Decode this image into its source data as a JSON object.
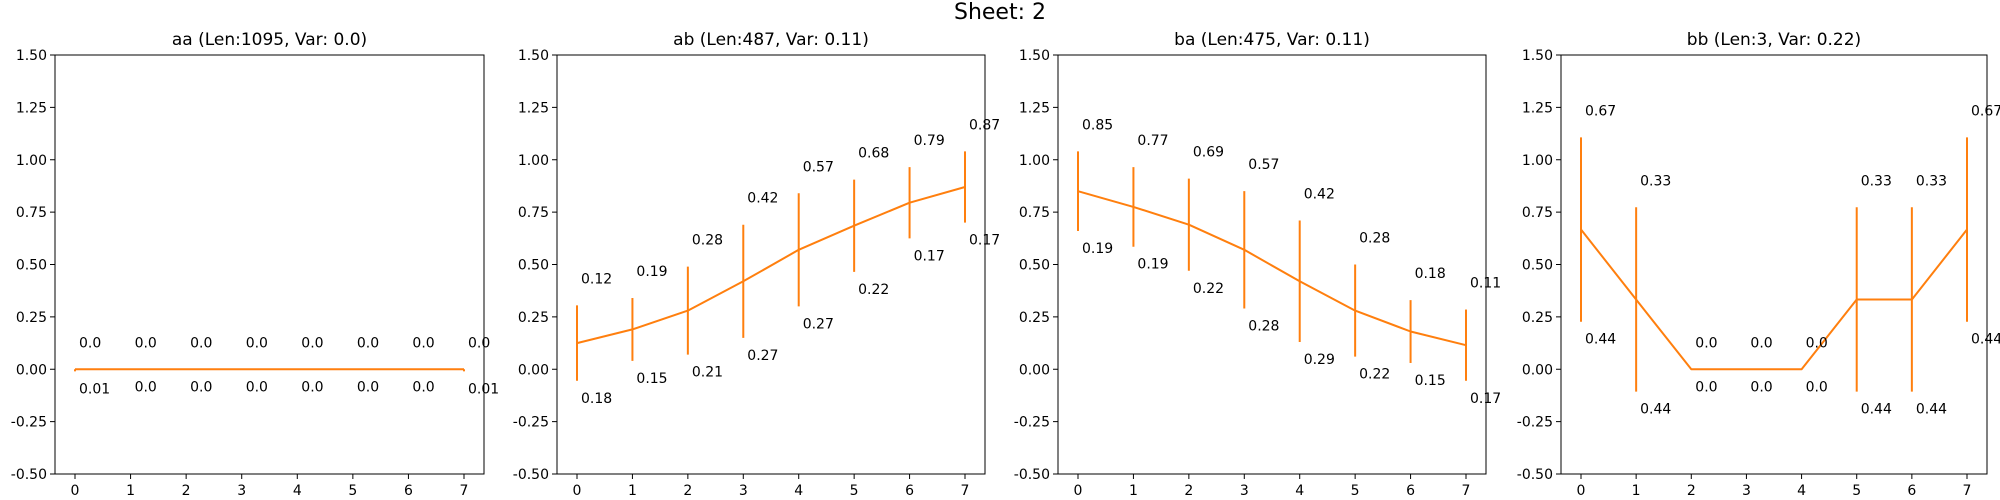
{
  "suptitle": "Sheet: 2",
  "chart_data": [
    {
      "type": "line",
      "title": "aa (Len:1095, Var: 0.0)",
      "xlabel": "",
      "ylabel": "",
      "x": [
        0,
        1,
        2,
        3,
        4,
        5,
        6,
        7
      ],
      "ylim": [
        -0.5,
        1.5
      ],
      "yticks": [
        "-0.50",
        "-0.25",
        "0.00",
        "0.25",
        "0.50",
        "0.75",
        "1.00",
        "1.25",
        "1.50"
      ],
      "xticks": [
        "0",
        "1",
        "2",
        "3",
        "4",
        "5",
        "6",
        "7"
      ],
      "grid": false,
      "color": "#ff7f0e",
      "values": [
        0.0,
        0.0,
        0.0,
        0.0,
        0.0,
        0.0,
        0.0,
        0.0
      ],
      "err_low": [
        0.01,
        0.0,
        0.0,
        0.0,
        0.0,
        0.0,
        0.0,
        0.01
      ],
      "err_high": [
        0.0,
        0.0,
        0.0,
        0.0,
        0.0,
        0.0,
        0.0,
        0.0
      ],
      "top_labels": [
        "0.0",
        "0.0",
        "0.0",
        "0.0",
        "0.0",
        "0.0",
        "0.0",
        "0.0"
      ],
      "bottom_labels": [
        "0.01",
        "0.0",
        "0.0",
        "0.0",
        "0.0",
        "0.0",
        "0.0",
        "0.01"
      ]
    },
    {
      "type": "line",
      "title": "ab (Len:487, Var: 0.11)",
      "xlabel": "",
      "ylabel": "",
      "x": [
        0,
        1,
        2,
        3,
        4,
        5,
        6,
        7
      ],
      "ylim": [
        -0.5,
        1.5
      ],
      "yticks": [
        "-0.50",
        "-0.25",
        "0.00",
        "0.25",
        "0.50",
        "0.75",
        "1.00",
        "1.25",
        "1.50"
      ],
      "xticks": [
        "0",
        "1",
        "2",
        "3",
        "4",
        "5",
        "6",
        "7"
      ],
      "grid": false,
      "color": "#ff7f0e",
      "values": [
        0.125,
        0.19,
        0.28,
        0.42,
        0.57,
        0.685,
        0.795,
        0.87
      ],
      "err_low": [
        0.18,
        0.15,
        0.21,
        0.27,
        0.27,
        0.22,
        0.17,
        0.17
      ],
      "err_high": [
        0.18,
        0.15,
        0.21,
        0.27,
        0.27,
        0.22,
        0.17,
        0.17
      ],
      "top_labels": [
        "0.12",
        "0.19",
        "0.28",
        "0.42",
        "0.57",
        "0.68",
        "0.79",
        "0.87"
      ],
      "bottom_labels": [
        "0.18",
        "0.15",
        "0.21",
        "0.27",
        "0.27",
        "0.22",
        "0.17",
        "0.17"
      ]
    },
    {
      "type": "line",
      "title": "ba (Len:475, Var: 0.11)",
      "xlabel": "",
      "ylabel": "",
      "x": [
        0,
        1,
        2,
        3,
        4,
        5,
        6,
        7
      ],
      "ylim": [
        -0.5,
        1.5
      ],
      "yticks": [
        "-0.50",
        "-0.25",
        "0.00",
        "0.25",
        "0.50",
        "0.75",
        "1.00",
        "1.25",
        "1.50"
      ],
      "xticks": [
        "0",
        "1",
        "2",
        "3",
        "4",
        "5",
        "6",
        "7"
      ],
      "grid": false,
      "color": "#ff7f0e",
      "values": [
        0.85,
        0.775,
        0.69,
        0.57,
        0.42,
        0.28,
        0.18,
        0.115
      ],
      "err_low": [
        0.19,
        0.19,
        0.22,
        0.28,
        0.29,
        0.22,
        0.15,
        0.17
      ],
      "err_high": [
        0.19,
        0.19,
        0.22,
        0.28,
        0.29,
        0.22,
        0.15,
        0.17
      ],
      "top_labels": [
        "0.85",
        "0.77",
        "0.69",
        "0.57",
        "0.42",
        "0.28",
        "0.18",
        "0.11"
      ],
      "bottom_labels": [
        "0.19",
        "0.19",
        "0.22",
        "0.28",
        "0.29",
        "0.22",
        "0.15",
        "0.17"
      ]
    },
    {
      "type": "line",
      "title": "bb (Len:3, Var: 0.22)",
      "xlabel": "",
      "ylabel": "",
      "x": [
        0,
        1,
        2,
        3,
        4,
        5,
        6,
        7
      ],
      "ylim": [
        -0.5,
        1.5
      ],
      "yticks": [
        "-0.50",
        "-0.25",
        "0.00",
        "0.25",
        "0.50",
        "0.75",
        "1.00",
        "1.25",
        "1.50"
      ],
      "xticks": [
        "0",
        "1",
        "2",
        "3",
        "4",
        "5",
        "6",
        "7"
      ],
      "grid": false,
      "color": "#ff7f0e",
      "values": [
        0.667,
        0.333,
        0.0,
        0.0,
        0.0,
        0.333,
        0.333,
        0.667
      ],
      "err_low": [
        0.44,
        0.44,
        0.0,
        0.0,
        0.0,
        0.44,
        0.44,
        0.44
      ],
      "err_high": [
        0.44,
        0.44,
        0.0,
        0.0,
        0.0,
        0.44,
        0.44,
        0.44
      ],
      "top_labels": [
        "0.67",
        "0.33",
        "0.0",
        "0.0",
        "0.0",
        "0.33",
        "0.33",
        "0.67"
      ],
      "bottom_labels": [
        "0.44",
        "0.44",
        "0.0",
        "0.0",
        "0.0",
        "0.44",
        "0.44",
        "0.44"
      ]
    }
  ]
}
